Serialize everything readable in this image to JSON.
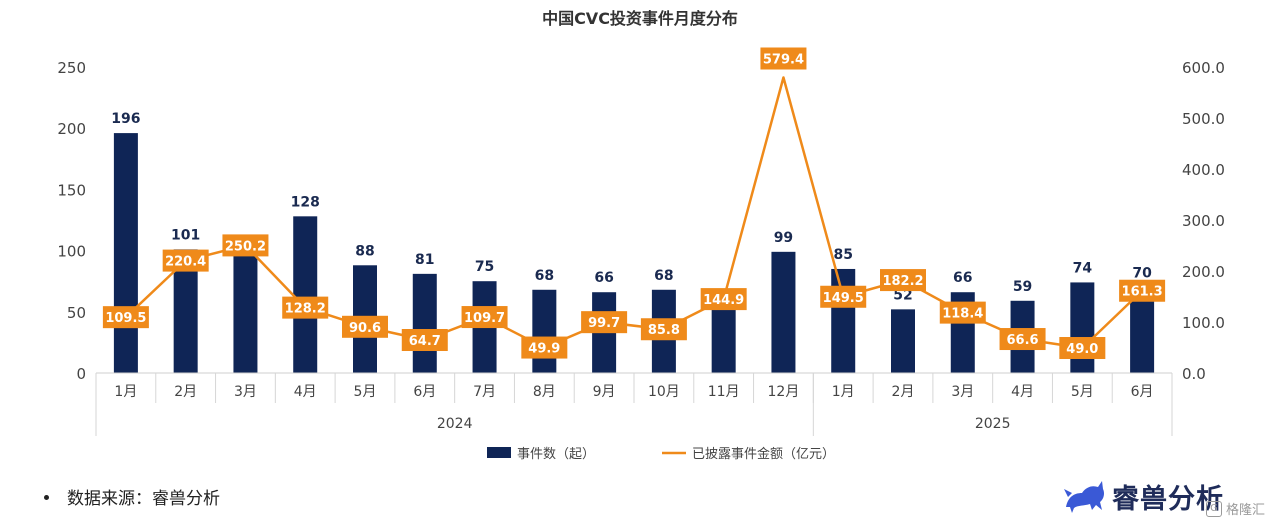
{
  "chart_data": {
    "type": "bar",
    "title": "中国CVC投资事件月度分布",
    "categories": [
      "1月",
      "2月",
      "3月",
      "4月",
      "5月",
      "6月",
      "7月",
      "8月",
      "9月",
      "10月",
      "11月",
      "12月",
      "1月",
      "2月",
      "3月",
      "4月",
      "5月",
      "6月"
    ],
    "groups": [
      {
        "label": "2024",
        "start": 0,
        "end": 11
      },
      {
        "label": "2025",
        "start": 12,
        "end": 17
      }
    ],
    "series": [
      {
        "name": "事件数（起）",
        "type": "bar",
        "axis": "left",
        "color": "#0f2556",
        "values": [
          196,
          101,
          112,
          128,
          88,
          81,
          75,
          68,
          66,
          68,
          65,
          99,
          85,
          52,
          66,
          59,
          74,
          70
        ],
        "labels": [
          "196",
          "101",
          "",
          "128",
          "88",
          "81",
          "75",
          "68",
          "66",
          "68",
          "",
          "99",
          "85",
          "52",
          "66",
          "59",
          "74",
          "70"
        ]
      },
      {
        "name": "已披露事件金额（亿元）",
        "type": "line",
        "axis": "right",
        "color": "#ef8a1a",
        "values": [
          109.5,
          220.4,
          250.2,
          128.2,
          90.6,
          64.7,
          109.7,
          49.9,
          99.7,
          85.8,
          144.9,
          579.4,
          149.5,
          182.2,
          118.4,
          66.6,
          49.0,
          161.3
        ],
        "labels": [
          "109.5",
          "220.4",
          "250.2",
          "128.2",
          "90.6",
          "64.7",
          "109.7",
          "49.9",
          "99.7",
          "85.8",
          "144.9",
          "579.4",
          "149.5",
          "182.2",
          "118.4",
          "66.6",
          "49.0",
          "161.3"
        ]
      }
    ],
    "y_left": {
      "min": 0,
      "max": 250,
      "ticks": [
        "0",
        "50",
        "100",
        "150",
        "200",
        "250"
      ]
    },
    "y_right": {
      "min": 0,
      "max": 600,
      "ticks": [
        "0.0",
        "100.0",
        "200.0",
        "300.0",
        "400.0",
        "500.0",
        "600.0"
      ]
    },
    "legend": "bottom",
    "grid": false
  },
  "source_text": "数据来源：睿兽分析",
  "brand": {
    "name": "睿兽分析",
    "icon": "dragon-logo-icon"
  },
  "watermark": {
    "text": "格隆汇",
    "icon": "g-logo-icon"
  }
}
